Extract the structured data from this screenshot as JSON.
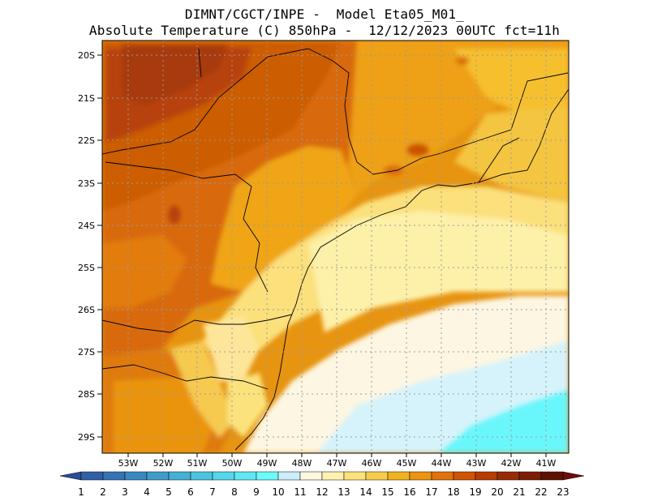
{
  "title": {
    "line1": "DIMNT/CGCT/INPE -  Model Eta05_M01_",
    "line2": "Absolute Temperature (C) 850hPa -  12/12/2023 00UTC fct=11h"
  },
  "map": {
    "lat_labels": [
      "20S",
      "21S",
      "22S",
      "23S",
      "24S",
      "25S",
      "26S",
      "27S",
      "28S",
      "29S"
    ],
    "lon_labels": [
      "53W",
      "52W",
      "51W",
      "50W",
      "49W",
      "48W",
      "47W",
      "46W",
      "45W",
      "44W",
      "43W",
      "42W",
      "41W"
    ]
  },
  "colorbar": {
    "labels": [
      "1",
      "2",
      "3",
      "4",
      "5",
      "6",
      "7",
      "8",
      "9",
      "10",
      "11",
      "12",
      "13",
      "14",
      "15",
      "16",
      "17",
      "18",
      "19",
      "20",
      "21",
      "22",
      "23"
    ],
    "colors": [
      "#2b4c9a",
      "#3160a8",
      "#3574b4",
      "#3a88c0",
      "#3f9ccb",
      "#45b0d6",
      "#4cc4df",
      "#55d6e9",
      "#5fe8f2",
      "#6cfafb",
      "#cbeefa",
      "#fdf7e0",
      "#fdf2b0",
      "#fbe27c",
      "#f7cc4a",
      "#f0b21d",
      "#ea9410",
      "#e07309",
      "#cf5405",
      "#b53d03",
      "#972c03",
      "#7b1e02",
      "#5e1102",
      "#700a0a"
    ]
  }
}
